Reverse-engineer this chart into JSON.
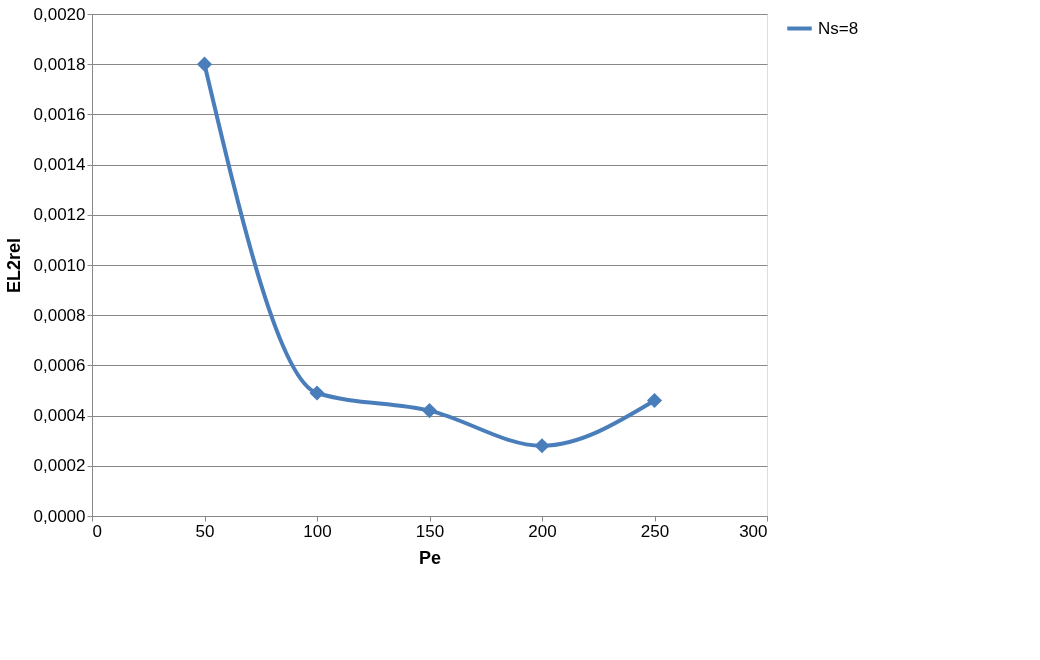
{
  "chart_data": {
    "type": "line",
    "xlabel": "Pe",
    "ylabel": "EL2rel",
    "x": [
      50,
      100,
      150,
      200,
      250
    ],
    "series": [
      {
        "name": "Ns=8",
        "color": "#4a7ebb",
        "values": [
          0.0018,
          0.00049,
          0.00042,
          0.00028,
          0.00046
        ]
      }
    ],
    "xlim": [
      0,
      300
    ],
    "xticks": [
      0,
      50,
      100,
      150,
      200,
      250,
      300
    ],
    "ylim": [
      0,
      0.002
    ],
    "yticks": [
      {
        "value": 0,
        "label": "0,0000"
      },
      {
        "value": 0.0002,
        "label": "0,0002"
      },
      {
        "value": 0.0004,
        "label": "0,0004"
      },
      {
        "value": 0.0006,
        "label": "0,0006"
      },
      {
        "value": 0.0008,
        "label": "0,0008"
      },
      {
        "value": 0.001,
        "label": "0,0010"
      },
      {
        "value": 0.0012,
        "label": "0,0012"
      },
      {
        "value": 0.0014,
        "label": "0,0014"
      },
      {
        "value": 0.0016,
        "label": "0,0016"
      },
      {
        "value": 0.0018,
        "label": "0,0018"
      },
      {
        "value": 0.002,
        "label": "0,0020"
      }
    ],
    "grid": "y",
    "legend": "right",
    "marker": "diamond",
    "line_style": "solid"
  }
}
